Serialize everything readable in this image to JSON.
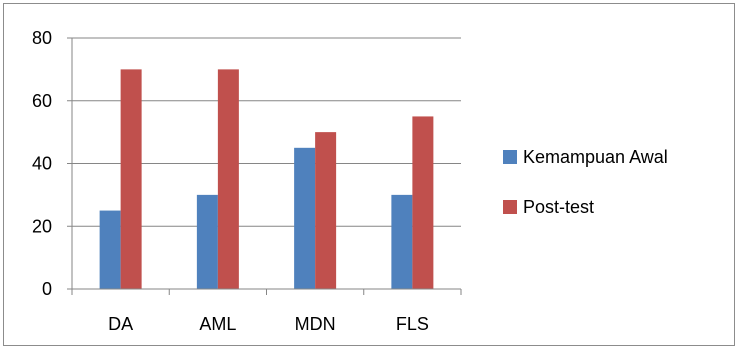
{
  "chart_data": {
    "type": "bar",
    "categories": [
      "DA",
      "AML",
      "MDN",
      "FLS"
    ],
    "series": [
      {
        "name": "Kemampuan Awal",
        "values": [
          25,
          30,
          45,
          30
        ],
        "color": "#4f81bd"
      },
      {
        "name": "Post-test",
        "values": [
          70,
          70,
          50,
          55
        ],
        "color": "#c0504d"
      }
    ],
    "y_ticks": [
      "0",
      "20",
      "40",
      "60",
      "80"
    ],
    "ylim": [
      0,
      80
    ],
    "grid": true,
    "legend_position": "right",
    "title": "",
    "xlabel": "",
    "ylabel": ""
  }
}
